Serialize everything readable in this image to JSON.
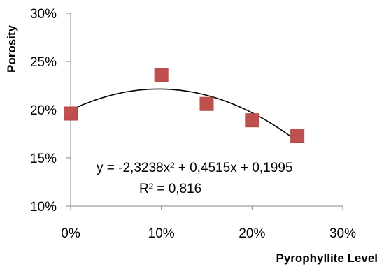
{
  "chart_data": {
    "type": "scatter",
    "xlabel": "Pyrophyllite Level",
    "ylabel": "Porosity",
    "xlim": [
      0,
      0.3
    ],
    "ylim": [
      0.1,
      0.3
    ],
    "x_ticks": [
      "0%",
      "10%",
      "20%",
      "30%"
    ],
    "y_ticks": [
      "10%",
      "15%",
      "20%",
      "25%",
      "30%"
    ],
    "grid": false,
    "legend": "none",
    "series": [
      {
        "x": [
          0,
          0.1,
          0.15,
          0.2,
          0.25
        ],
        "y": [
          0.196,
          0.236,
          0.206,
          0.189,
          0.173
        ],
        "marker": "square",
        "color": "#C0504D"
      }
    ],
    "trendline": {
      "type": "polynomial",
      "order": 2,
      "coefficients": [
        -2.3238,
        0.4515,
        0.1995
      ],
      "x_range": [
        0,
        0.25
      ],
      "color": "#000000",
      "equation": "y = -2,3238x² + 0,4515x + 0,1995",
      "r_squared": "R² = 0,816"
    }
  }
}
